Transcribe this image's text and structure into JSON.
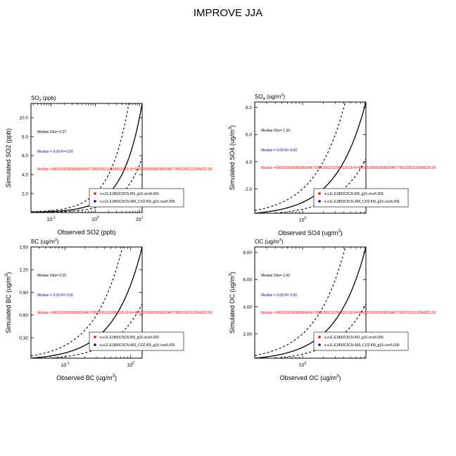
{
  "page": {
    "title": "IMPROVE JJA"
  },
  "legend_entries": [
    {
      "label": "e.e11.E1850C5CN.f09_g16.cice5.005",
      "color": "#ff0000"
    },
    {
      "label": "e.e11.E1850C5CN.400_CO2.f09_g16.cice5.005",
      "color": "#0000cc"
    }
  ],
  "median_lines": {
    "series1": "Median = 0.00 R= 0.00",
    "series2": "Median =9969209968386869046778552952102584320.00 R=9969209968386869046778552952102584320.00"
  },
  "chart_data": [
    {
      "type": "scatter",
      "title_main": "SO",
      "title_sub": "2",
      "title_tail": " (ppb)",
      "xlabel": "Observed SO2 (ppb)",
      "ylabel": "Simulated SO2 (ppb)",
      "xscale": "log",
      "xlim": [
        0.035,
        11.5
      ],
      "ylim": [
        0,
        11.5
      ],
      "xticks": [
        0.1,
        1,
        10
      ],
      "xticklabels": [
        {
          "base": "10",
          "exp": "-1"
        },
        {
          "base": "10",
          "exp": "0"
        },
        {
          "base": "10",
          "exp": "1"
        }
      ],
      "yticks": [
        2,
        4,
        6,
        8,
        10
      ],
      "yticklabels": [
        "2.0",
        "4.0",
        "6.0",
        "8.0",
        "10.0"
      ],
      "median_obs": "Median Obs= 0.37",
      "reference_lines": [
        {
          "style": "solid",
          "ratio": 1
        },
        {
          "style": "dashed",
          "ratio": 2
        },
        {
          "style": "dashed",
          "ratio": 0.5
        }
      ],
      "series": []
    },
    {
      "type": "scatter",
      "title_main": "SO",
      "title_sub": "4",
      "title_tail": " (ug/m",
      "title_sup": "3",
      "title_close": ")",
      "xlabel_main": "Observed SO4 (ug/m",
      "xlabel_sup": "3",
      "xlabel_close": ")",
      "ylabel_main": "Simulated SO4 (ug/m",
      "ylabel_sup": "3",
      "ylabel_close": ")",
      "xscale": "log",
      "xlim": [
        0.2,
        8.4
      ],
      "ylim": [
        0.2,
        8.4
      ],
      "xticks": [
        1
      ],
      "xticklabels": [
        {
          "base": "10",
          "exp": "0"
        }
      ],
      "yticks": [
        2,
        4,
        6,
        8
      ],
      "yticklabels": [
        "2.0",
        "4.0",
        "6.0",
        "8.0"
      ],
      "median_obs": "Median Obs= 1.33",
      "reference_lines": [
        {
          "style": "solid",
          "ratio": 1
        },
        {
          "style": "dashed",
          "ratio": 2
        },
        {
          "style": "dashed",
          "ratio": 0.5
        }
      ],
      "series": []
    },
    {
      "type": "scatter",
      "title_main": "BC (ug/m",
      "title_sup": "3",
      "title_close": ")",
      "xlabel_main": "Observed BC (ug/m",
      "xlabel_sup": "3",
      "xlabel_close": ")",
      "ylabel_main": "Simulated BC (ug/m",
      "ylabel_sup": "3",
      "ylabel_close": ")",
      "xscale": "log",
      "xlim": [
        0.03,
        1.5
      ],
      "ylim": [
        0.03,
        1.5
      ],
      "xticks": [
        0.1,
        1
      ],
      "xticklabels": [
        {
          "base": "10",
          "exp": "-1"
        },
        {
          "base": "10",
          "exp": "0"
        }
      ],
      "yticks": [
        0.3,
        0.6,
        0.9,
        1.2,
        1.5
      ],
      "yticklabels": [
        "0.30",
        "0.60",
        "0.90",
        "1.20",
        "1.50"
      ],
      "median_obs": "Median Obs= 0.25",
      "reference_lines": [
        {
          "style": "solid",
          "ratio": 1
        },
        {
          "style": "dashed",
          "ratio": 2
        },
        {
          "style": "dashed",
          "ratio": 0.5
        }
      ],
      "series": []
    },
    {
      "type": "scatter",
      "title_main": "OC (ug/m",
      "title_sup": "3",
      "title_close": ")",
      "xlabel_main": "Observed OC (ug/m",
      "xlabel_sup": "3",
      "xlabel_close": ")",
      "ylabel_main": "Simulated OC (ug/m",
      "ylabel_sup": "3",
      "ylabel_close": ")",
      "xscale": "log",
      "xlim": [
        0.2,
        8.4
      ],
      "ylim": [
        0.2,
        8.4
      ],
      "xticks": [
        1
      ],
      "xticklabels": [
        {
          "base": "10",
          "exp": "0"
        }
      ],
      "yticks": [
        2,
        4,
        6,
        8
      ],
      "yticklabels": [
        "2.00",
        "4.00",
        "6.00",
        "8.00"
      ],
      "median_obs": "Median Obs= 1.60",
      "reference_lines": [
        {
          "style": "solid",
          "ratio": 1
        },
        {
          "style": "dashed",
          "ratio": 2
        },
        {
          "style": "dashed",
          "ratio": 0.5
        }
      ],
      "series": []
    }
  ]
}
